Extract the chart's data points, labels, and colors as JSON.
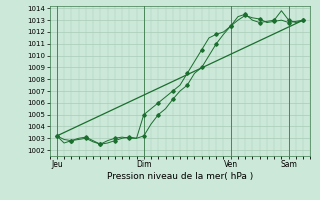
{
  "background_color": "#cce8d8",
  "grid_color": "#a8ccb8",
  "line_color": "#1a6e2e",
  "marker_color": "#1a6e2e",
  "title": "Pression niveau de la mer( hPa )",
  "ylim": [
    1001.5,
    1014.2
  ],
  "ytick_min": 1002,
  "ytick_max": 1014,
  "xtick_labels": [
    "Jeu",
    "Dim",
    "Ven",
    "Sam"
  ],
  "xtick_positions": [
    1,
    13,
    25,
    33
  ],
  "xlim": [
    0,
    36
  ],
  "vlines_x": [
    1,
    13,
    25,
    33
  ],
  "line1_x": [
    1,
    2,
    3,
    4,
    5,
    6,
    7,
    8,
    9,
    10,
    11,
    12,
    13,
    14,
    15,
    16,
    17,
    18,
    19,
    20,
    21,
    22,
    23,
    24,
    25,
    26,
    27,
    28,
    29,
    30,
    31,
    32,
    33,
    34,
    35
  ],
  "line1_y": [
    1003.2,
    1002.9,
    1002.8,
    1002.9,
    1003.0,
    1002.7,
    1002.5,
    1002.6,
    1002.8,
    1003.0,
    1003.1,
    1003.0,
    1003.2,
    1004.2,
    1005.0,
    1005.5,
    1006.3,
    1007.0,
    1007.5,
    1008.5,
    1009.0,
    1010.0,
    1011.0,
    1011.8,
    1012.5,
    1013.3,
    1013.5,
    1013.0,
    1012.8,
    1012.9,
    1013.0,
    1013.8,
    1013.0,
    1012.8,
    1013.0
  ],
  "line2_x": [
    1,
    2,
    3,
    4,
    5,
    6,
    7,
    8,
    9,
    10,
    11,
    12,
    13,
    14,
    15,
    16,
    17,
    18,
    19,
    20,
    21,
    22,
    23,
    24,
    25,
    26,
    27,
    28,
    29,
    30,
    31,
    32,
    33,
    34,
    35
  ],
  "line2_y": [
    1003.2,
    1002.6,
    1002.8,
    1003.0,
    1003.1,
    1002.8,
    1002.5,
    1002.8,
    1003.0,
    1003.1,
    1003.0,
    1003.0,
    1005.0,
    1005.5,
    1006.0,
    1006.5,
    1007.0,
    1007.5,
    1008.5,
    1009.5,
    1010.5,
    1011.5,
    1011.8,
    1012.0,
    1012.5,
    1013.0,
    1013.4,
    1013.2,
    1013.1,
    1012.8,
    1012.9,
    1013.0,
    1012.8,
    1012.9,
    1013.0
  ],
  "line3_x": [
    1,
    35
  ],
  "line3_y": [
    1003.2,
    1013.0
  ],
  "figsize": [
    3.2,
    2.0
  ],
  "dpi": 100
}
